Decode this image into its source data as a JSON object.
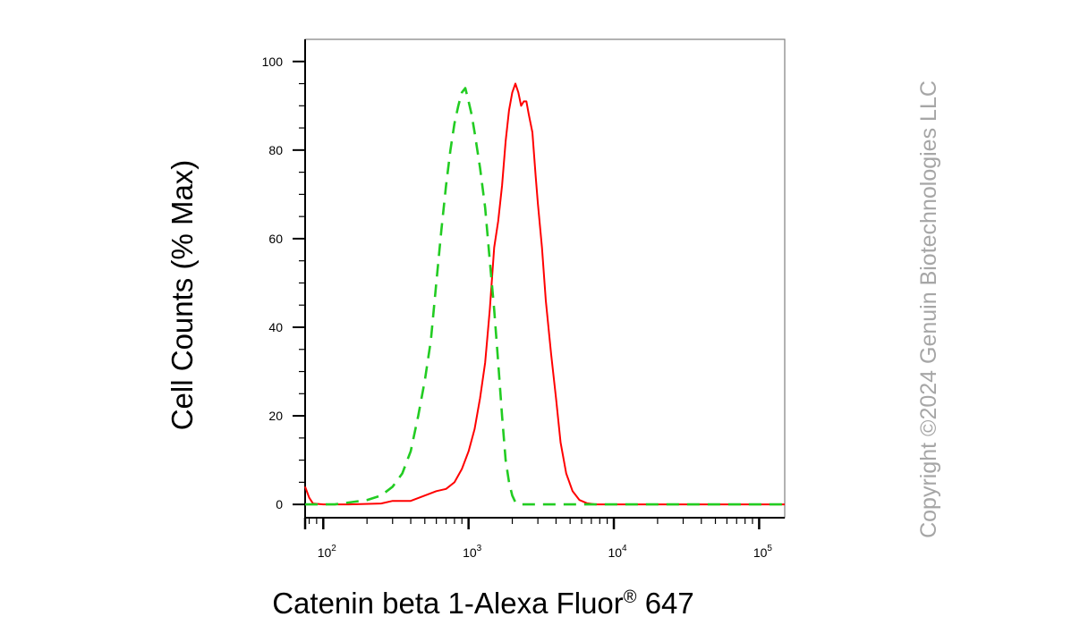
{
  "chart_data": {
    "type": "line",
    "xlabel": "Catenin beta 1-Alexa Fluor",
    "xlabel_sup": "®",
    "xlabel_suffix": " 647",
    "ylabel": "Cell Counts (% Max)",
    "x_scale": "log",
    "xlim": [
      75,
      150000
    ],
    "ylim": [
      -3,
      105
    ],
    "y_ticks": [
      0,
      20,
      40,
      60,
      80,
      100
    ],
    "y_tick_labels": [
      "0",
      "20",
      "40",
      "60",
      "80",
      "100"
    ],
    "x_ticks": [
      100,
      1000,
      10000,
      100000
    ],
    "x_tick_labels": [
      {
        "base": "10",
        "exp": "2"
      },
      {
        "base": "10",
        "exp": "3"
      },
      {
        "base": "10",
        "exp": "4"
      },
      {
        "base": "10",
        "exp": "5"
      }
    ],
    "grid": false,
    "series": [
      {
        "color": "#ff0000",
        "dash": "solid",
        "points": [
          [
            75,
            4
          ],
          [
            80,
            1.5
          ],
          [
            85,
            0.2
          ],
          [
            100,
            0
          ],
          [
            150,
            0
          ],
          [
            250,
            0.2
          ],
          [
            300,
            0.8
          ],
          [
            400,
            0.8
          ],
          [
            500,
            2
          ],
          [
            600,
            3
          ],
          [
            700,
            3.5
          ],
          [
            800,
            5
          ],
          [
            900,
            8
          ],
          [
            1000,
            12
          ],
          [
            1100,
            17
          ],
          [
            1200,
            24
          ],
          [
            1300,
            32
          ],
          [
            1400,
            44
          ],
          [
            1500,
            58
          ],
          [
            1600,
            64
          ],
          [
            1700,
            72
          ],
          [
            1800,
            82
          ],
          [
            1900,
            89
          ],
          [
            2000,
            93
          ],
          [
            2100,
            95
          ],
          [
            2200,
            93
          ],
          [
            2300,
            90
          ],
          [
            2400,
            91
          ],
          [
            2500,
            91
          ],
          [
            2600,
            88
          ],
          [
            2750,
            84
          ],
          [
            2900,
            74
          ],
          [
            3000,
            68
          ],
          [
            3200,
            58
          ],
          [
            3400,
            46
          ],
          [
            3700,
            34
          ],
          [
            4000,
            24
          ],
          [
            4300,
            14
          ],
          [
            4700,
            7
          ],
          [
            5200,
            3
          ],
          [
            5800,
            1
          ],
          [
            6500,
            0.3
          ],
          [
            7500,
            0
          ],
          [
            150000,
            0
          ]
        ]
      },
      {
        "color": "#22cc22",
        "dash": "dashed",
        "points": [
          [
            75,
            0
          ],
          [
            120,
            0
          ],
          [
            200,
            1
          ],
          [
            250,
            2
          ],
          [
            300,
            4
          ],
          [
            350,
            7
          ],
          [
            400,
            12
          ],
          [
            450,
            20
          ],
          [
            500,
            28
          ],
          [
            550,
            37
          ],
          [
            600,
            50
          ],
          [
            650,
            62
          ],
          [
            700,
            72
          ],
          [
            750,
            80
          ],
          [
            800,
            86
          ],
          [
            850,
            90
          ],
          [
            900,
            93
          ],
          [
            950,
            94
          ],
          [
            1000,
            91
          ],
          [
            1050,
            88
          ],
          [
            1100,
            84
          ],
          [
            1200,
            76
          ],
          [
            1300,
            67
          ],
          [
            1400,
            55
          ],
          [
            1500,
            44
          ],
          [
            1600,
            32
          ],
          [
            1700,
            20
          ],
          [
            1800,
            10
          ],
          [
            1900,
            5
          ],
          [
            2000,
            2
          ],
          [
            2100,
            0.5
          ],
          [
            2300,
            0
          ],
          [
            150000,
            0
          ]
        ]
      }
    ]
  },
  "watermark": "Copyright ©2024 Genuin Biotechnologies LLC"
}
